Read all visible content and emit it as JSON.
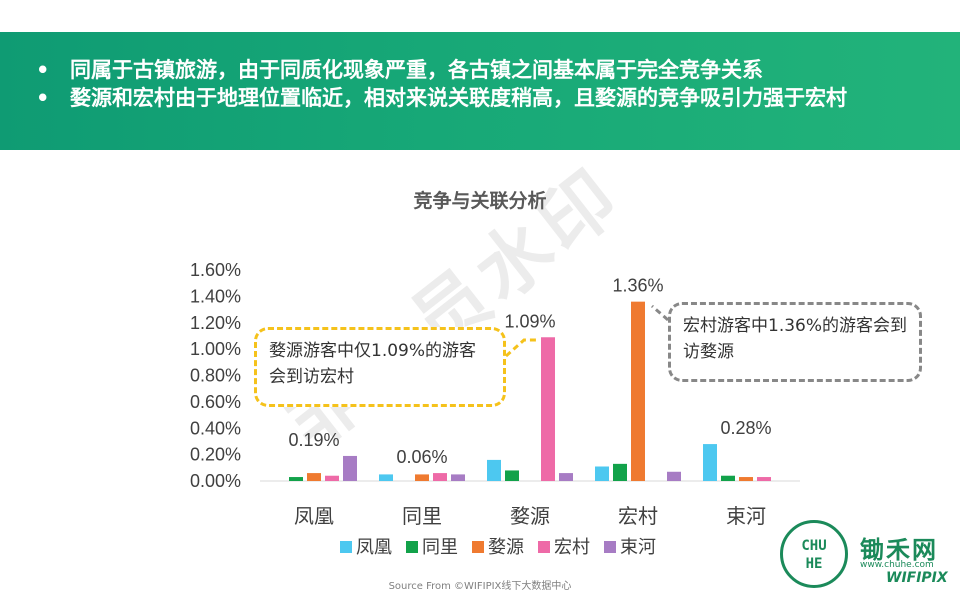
{
  "header": {
    "bullets": [
      "同属于古镇旅游，由于同质化现象严重，各古镇之间基本属于完全竞争关系",
      "婺源和宏村由于地理位置临近，相对来说关联度稍高，且婺源的竞争吸引力强于宏村"
    ],
    "bullet_glyph": "•"
  },
  "chart_data": {
    "type": "bar",
    "title": "竞争与关联分析",
    "categories": [
      "凤凰",
      "同里",
      "婺源",
      "宏村",
      "束河"
    ],
    "series": [
      {
        "name": "凤凰",
        "color": "#4dc8f0",
        "values": [
          0.0,
          0.05,
          0.16,
          0.11,
          0.28
        ]
      },
      {
        "name": "同里",
        "color": "#12a24a",
        "values": [
          0.03,
          0.0,
          0.08,
          0.13,
          0.04
        ]
      },
      {
        "name": "婺源",
        "color": "#ef7a30",
        "values": [
          0.06,
          0.05,
          0.0,
          1.36,
          0.03
        ]
      },
      {
        "name": "宏村",
        "color": "#ee6aa7",
        "values": [
          0.04,
          0.06,
          1.09,
          0.0,
          0.03
        ]
      },
      {
        "name": "束河",
        "color": "#a77cc4",
        "values": [
          0.19,
          0.05,
          0.06,
          0.07,
          0.0
        ]
      }
    ],
    "yticks": [
      "0.00%",
      "0.20%",
      "0.40%",
      "0.60%",
      "0.80%",
      "1.00%",
      "1.20%",
      "1.40%",
      "1.60%"
    ],
    "ylim": [
      0,
      1.6
    ],
    "data_labels": [
      {
        "category": 0,
        "text": "0.19%",
        "value": 0.19
      },
      {
        "category": 1,
        "text": "0.06%",
        "value": 0.06
      },
      {
        "category": 2,
        "text": "1.09%",
        "value": 1.09
      },
      {
        "category": 3,
        "text": "1.36%",
        "value": 1.36
      },
      {
        "category": 4,
        "text": "0.28%",
        "value": 0.28
      }
    ],
    "legend_position": "bottom",
    "grid": false
  },
  "callouts": {
    "left": "婺源游客中仅1.09%的游客会到访宏村",
    "right": "宏村游客中1.36%的游客会到访婺源"
  },
  "source": "Source From ©WIFIPIX线下大数据中心",
  "watermark": "非会员水印",
  "logo": {
    "seal_top": "CHU",
    "seal_bottom": "HE",
    "name": "锄禾网",
    "url": "www.chuhe.com",
    "brand": "WIFIPIX"
  }
}
